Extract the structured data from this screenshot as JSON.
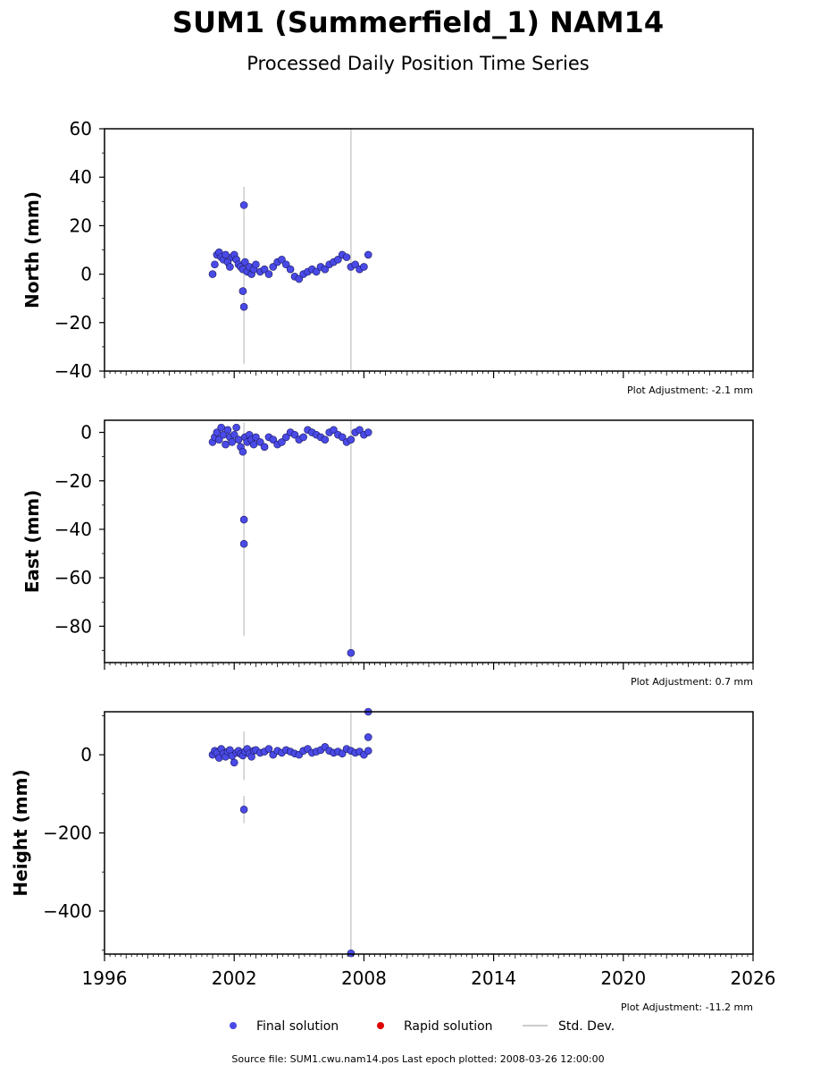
{
  "chart_data": {
    "type": "scatter",
    "title": "SUM1 (Summerfield_1) NAM14",
    "subtitle": "Processed Daily Position Time Series",
    "x_ticks": [
      "1996",
      "2002",
      "2008",
      "2014",
      "2020",
      "2026"
    ],
    "xlim": [
      1996,
      2026
    ],
    "grid": false,
    "panels": [
      {
        "ylabel": "North (mm)",
        "ylim": [
          -40,
          60
        ],
        "y_ticks": [
          "60",
          "40",
          "20",
          "0",
          "−20",
          "−40"
        ],
        "adjustment": "Plot Adjustment: -2.1 mm",
        "series": [
          {
            "name": "Final solution",
            "color": "#4a4ae8",
            "x": [
              2001.0,
              2001.1,
              2001.2,
              2001.3,
              2001.4,
              2001.5,
              2001.6,
              2001.7,
              2001.8,
              2001.9,
              2002.0,
              2002.1,
              2002.2,
              2002.3,
              2002.4,
              2002.5,
              2002.6,
              2002.7,
              2002.8,
              2002.9,
              2003.0,
              2003.2,
              2003.4,
              2003.6,
              2003.8,
              2004.0,
              2004.2,
              2004.4,
              2004.6,
              2004.8,
              2005.0,
              2005.2,
              2005.4,
              2005.6,
              2005.8,
              2006.0,
              2006.2,
              2006.4,
              2006.6,
              2006.8,
              2007.0,
              2007.2,
              2007.4,
              2007.6,
              2007.8,
              2008.0,
              2008.2,
              2002.45,
              2002.45,
              2002.4
            ],
            "y": [
              0,
              4,
              8,
              9,
              7,
              6,
              8,
              5,
              3,
              7,
              8,
              6,
              4,
              3,
              2,
              5,
              1,
              3,
              0,
              2,
              4,
              1,
              2,
              0,
              3,
              5,
              6,
              4,
              2,
              -1,
              -2,
              0,
              1,
              2,
              1,
              3,
              2,
              4,
              5,
              6,
              8,
              7,
              3,
              4,
              2,
              3,
              8,
              28.5,
              -13.5,
              -7
            ]
          }
        ],
        "errorbars": [
          {
            "x": 2002.45,
            "low": -37,
            "high": 36
          },
          {
            "x": 2007.4,
            "low": -40,
            "high": 60
          }
        ]
      },
      {
        "ylabel": "East (mm)",
        "ylim": [
          -95,
          5
        ],
        "y_ticks": [
          "0",
          "−20",
          "−40",
          "−60",
          "−80"
        ],
        "adjustment": "Plot Adjustment: 0.7 mm",
        "series": [
          {
            "name": "Final solution",
            "color": "#4a4ae8",
            "x": [
              2001.0,
              2001.1,
              2001.2,
              2001.3,
              2001.4,
              2001.5,
              2001.6,
              2001.7,
              2001.8,
              2001.9,
              2002.0,
              2002.1,
              2002.2,
              2002.3,
              2002.4,
              2002.5,
              2002.6,
              2002.7,
              2002.8,
              2002.9,
              2003.0,
              2003.2,
              2003.4,
              2003.6,
              2003.8,
              2004.0,
              2004.2,
              2004.4,
              2004.6,
              2004.8,
              2005.0,
              2005.2,
              2005.4,
              2005.6,
              2005.8,
              2006.0,
              2006.2,
              2006.4,
              2006.6,
              2006.8,
              2007.0,
              2007.2,
              2007.4,
              2007.6,
              2007.8,
              2008.0,
              2008.2,
              2002.45,
              2002.45,
              2007.4
            ],
            "y": [
              -4,
              -2,
              0,
              -3,
              2,
              -1,
              -5,
              1,
              -2,
              -4,
              -1,
              2,
              -3,
              -6,
              -8,
              -2,
              -4,
              -1,
              -3,
              -5,
              -2,
              -4,
              -6,
              -2,
              -3,
              -5,
              -4,
              -2,
              0,
              -1,
              -3,
              -2,
              1,
              0,
              -1,
              -2,
              -3,
              0,
              1,
              -1,
              -2,
              -4,
              -3,
              0,
              1,
              -1,
              0,
              -36,
              -46,
              -91
            ]
          }
        ],
        "errorbars": [
          {
            "x": 2002.45,
            "low": -84,
            "high": 4
          },
          {
            "x": 2007.4,
            "low": -95,
            "high": 5
          }
        ]
      },
      {
        "ylabel": "Height (mm)",
        "ylim": [
          -510,
          110
        ],
        "y_ticks": [
          "0",
          "−200",
          "−400"
        ],
        "adjustment": "Plot Adjustment: -11.2 mm",
        "series": [
          {
            "name": "Final solution",
            "color": "#4a4ae8",
            "x": [
              2001.0,
              2001.1,
              2001.2,
              2001.3,
              2001.4,
              2001.5,
              2001.6,
              2001.7,
              2001.8,
              2001.9,
              2002.0,
              2002.1,
              2002.2,
              2002.3,
              2002.4,
              2002.5,
              2002.6,
              2002.7,
              2002.8,
              2002.9,
              2003.0,
              2003.2,
              2003.4,
              2003.6,
              2003.8,
              2004.0,
              2004.2,
              2004.4,
              2004.6,
              2004.8,
              2005.0,
              2005.2,
              2005.4,
              2005.6,
              2005.8,
              2006.0,
              2006.2,
              2006.4,
              2006.6,
              2006.8,
              2007.0,
              2007.2,
              2007.4,
              2007.6,
              2007.8,
              2008.0,
              2008.2,
              2002.45,
              2007.4,
              2008.2,
              2008.2
            ],
            "y": [
              0,
              10,
              5,
              -8,
              15,
              3,
              -5,
              8,
              12,
              -3,
              -20,
              5,
              10,
              2,
              -2,
              8,
              15,
              3,
              -5,
              10,
              12,
              5,
              8,
              15,
              0,
              10,
              5,
              12,
              8,
              3,
              0,
              10,
              15,
              5,
              8,
              12,
              20,
              10,
              5,
              8,
              3,
              15,
              10,
              5,
              8,
              0,
              10,
              -140,
              -508,
              110,
              45
            ]
          }
        ],
        "errorbars": [
          {
            "x": 2002.45,
            "low": -175,
            "high": -105
          },
          {
            "x": 2002.45,
            "low": -65,
            "high": 60
          },
          {
            "x": 2007.4,
            "low": -510,
            "high": 110
          }
        ]
      }
    ],
    "legend": [
      "Final solution",
      "Rapid solution",
      "Std. Dev."
    ],
    "legend_colors": {
      "final": "#4a4ae8",
      "rapid": "#e00000",
      "std": "#cccccc"
    },
    "footer": "Source file: SUM1.cwu.nam14.pos  Last epoch plotted: 2008-03-26 12:00:00"
  }
}
